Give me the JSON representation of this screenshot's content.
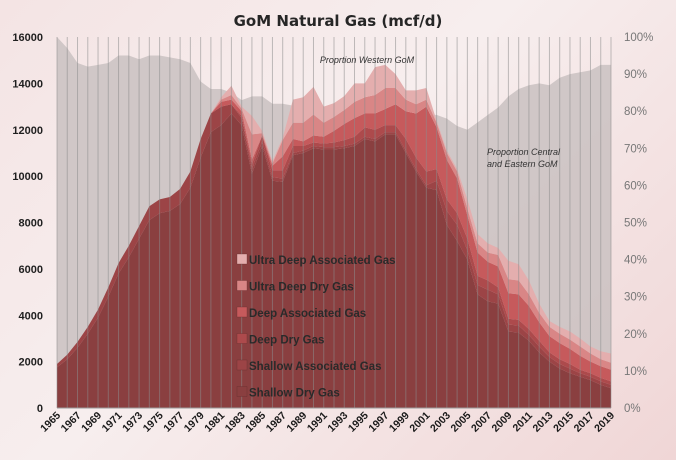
{
  "chart_data": {
    "type": "area",
    "title": "GoM Natural Gas (mcf/d)",
    "xlabel": "",
    "ylabel": "",
    "x": [
      1965,
      1966,
      1967,
      1968,
      1969,
      1970,
      1971,
      1972,
      1973,
      1974,
      1975,
      1976,
      1977,
      1978,
      1979,
      1980,
      1981,
      1982,
      1983,
      1984,
      1985,
      1986,
      1987,
      1988,
      1989,
      1990,
      1991,
      1992,
      1993,
      1994,
      1995,
      1996,
      1997,
      1998,
      1999,
      2000,
      2001,
      2002,
      2003,
      2004,
      2005,
      2006,
      2007,
      2008,
      2009,
      2010,
      2011,
      2012,
      2013,
      2014,
      2015,
      2016,
      2017,
      2018,
      2019
    ],
    "x_tick_labels": [
      "1965",
      "1967",
      "1969",
      "1971",
      "1973",
      "1975",
      "1977",
      "1979",
      "1981",
      "1983",
      "1985",
      "1987",
      "1989",
      "1991",
      "1993",
      "1995",
      "1997",
      "1999",
      "2001",
      "2003",
      "2005",
      "2007",
      "2009",
      "2011",
      "2013",
      "2015",
      "2017",
      "2019"
    ],
    "ylim": [
      0,
      16000
    ],
    "y_ticks": [
      "0",
      "2000",
      "4000",
      "6000",
      "8000",
      "10000",
      "12000",
      "14000",
      "16000"
    ],
    "y2lim": [
      0,
      100
    ],
    "y2_ticks": [
      "0%",
      "10%",
      "20%",
      "30%",
      "40%",
      "50%",
      "60%",
      "70%",
      "80%",
      "90%",
      "100%"
    ],
    "stacked": true,
    "grid": "vertical",
    "legend_position": "center-left",
    "series": [
      {
        "name": "Shallow Dry Gas",
        "color": "#8a3f40",
        "values": [
          1750,
          2100,
          2600,
          3200,
          3900,
          4800,
          5800,
          6500,
          7300,
          8100,
          8400,
          8500,
          8800,
          9500,
          10800,
          11900,
          12200,
          12700,
          12200,
          10100,
          11300,
          9800,
          9750,
          10900,
          11000,
          11200,
          11150,
          11150,
          11200,
          11300,
          11600,
          11500,
          11800,
          11800,
          11000,
          10200,
          9500,
          9400,
          7900,
          7200,
          6400,
          4900,
          4600,
          4500,
          3300,
          3250,
          2900,
          2400,
          2000,
          1700,
          1500,
          1350,
          1200,
          1000,
          850
        ]
      },
      {
        "name": "Shallow Associated Gas",
        "color": "#9c4446",
        "values": [
          150,
          200,
          250,
          300,
          350,
          400,
          450,
          500,
          550,
          600,
          600,
          600,
          650,
          700,
          800,
          800,
          800,
          400,
          300,
          200,
          200,
          150,
          150,
          100,
          100,
          100,
          100,
          100,
          100,
          100,
          100,
          100,
          100,
          100,
          100,
          100,
          100,
          400,
          600,
          700,
          400,
          400,
          500,
          400,
          300,
          300,
          250,
          250,
          200,
          200,
          200,
          150,
          150,
          150,
          150
        ]
      },
      {
        "name": "Deep Dry Gas",
        "color": "#ad4a4c",
        "values": [
          0,
          0,
          0,
          0,
          0,
          0,
          0,
          0,
          0,
          0,
          0,
          0,
          0,
          0,
          0,
          0,
          0,
          0,
          100,
          200,
          250,
          300,
          350,
          300,
          200,
          150,
          150,
          200,
          250,
          300,
          400,
          400,
          300,
          300,
          500,
          500,
          600,
          500,
          500,
          500,
          500,
          400,
          400,
          300,
          250,
          250,
          250,
          250,
          200,
          200,
          200,
          150,
          150,
          150,
          150
        ]
      },
      {
        "name": "Deep Associated Gas",
        "color": "#c65a5c",
        "values": [
          0,
          0,
          0,
          0,
          0,
          0,
          0,
          0,
          0,
          0,
          0,
          0,
          0,
          0,
          0,
          0,
          200,
          200,
          200,
          200,
          0,
          200,
          600,
          300,
          200,
          300,
          300,
          500,
          700,
          800,
          600,
          700,
          700,
          900,
          1200,
          1900,
          2800,
          1800,
          1700,
          1500,
          1000,
          1000,
          800,
          900,
          1100,
          1100,
          1000,
          800,
          700,
          700,
          650,
          600,
          500,
          500,
          500
        ]
      },
      {
        "name": "Ultra Deep Dry Gas",
        "color": "#d98686",
        "values": [
          0,
          0,
          0,
          0,
          0,
          0,
          0,
          0,
          0,
          0,
          0,
          0,
          0,
          0,
          0,
          0,
          100,
          200,
          100,
          1100,
          100,
          100,
          700,
          700,
          800,
          900,
          600,
          600,
          600,
          700,
          700,
          800,
          900,
          700,
          500,
          400,
          300,
          200,
          300,
          300,
          300,
          400,
          400,
          500,
          600,
          600,
          500,
          400,
          400,
          400,
          400,
          400,
          350,
          300,
          300
        ]
      },
      {
        "name": "Ultra Deep Associated Gas",
        "color": "#e4aeae",
        "values": [
          0,
          0,
          0,
          0,
          0,
          0,
          0,
          0,
          0,
          0,
          0,
          0,
          0,
          0,
          0,
          0,
          100,
          400,
          100,
          800,
          100,
          100,
          100,
          1000,
          1100,
          1200,
          700,
          600,
          600,
          800,
          600,
          1200,
          1000,
          600,
          400,
          600,
          500,
          100,
          100,
          100,
          400,
          400,
          400,
          300,
          800,
          700,
          600,
          400,
          250,
          300,
          350,
          350,
          300,
          350,
          400
        ]
      }
    ],
    "proportion_series": {
      "color": "#c9c1c1",
      "values": [
        100,
        97,
        93,
        92,
        92.5,
        93,
        95,
        95,
        94,
        95,
        95,
        94.5,
        94,
        93,
        88,
        86,
        86,
        85,
        83,
        84,
        84,
        82,
        82,
        81.5,
        80,
        80,
        80,
        80.5,
        80,
        80,
        80,
        79.5,
        79,
        79,
        79,
        79,
        79,
        79,
        78,
        76,
        75,
        77,
        79,
        81,
        84,
        86,
        87,
        87.5,
        87,
        89,
        90,
        90.5,
        91,
        92.5,
        92.5
      ]
    },
    "annotations": [
      "Proprtion Western GoM",
      "Proportion Central",
      "and Eastern GoM"
    ]
  }
}
